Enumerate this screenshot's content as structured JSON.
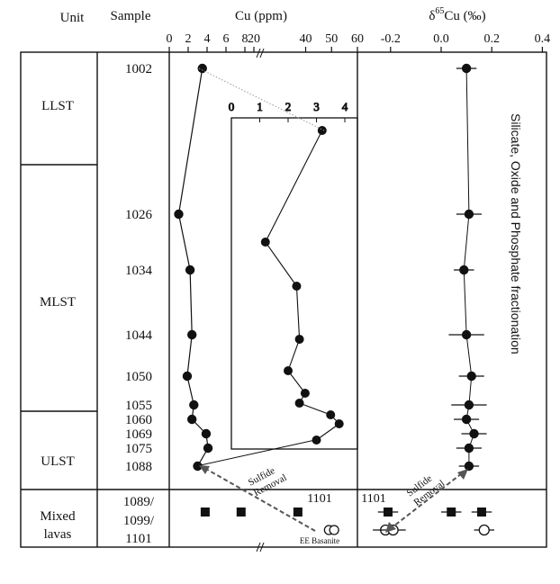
{
  "headers": {
    "unit": "Unit",
    "sample": "Sample",
    "cu": "Cu (ppm)",
    "delta_prefix": "δ",
    "delta_sup": "65",
    "delta_suffix": "Cu (‰)"
  },
  "units": [
    {
      "name": "LLST"
    },
    {
      "name": "MLST"
    },
    {
      "name": "ULST"
    },
    {
      "name": "Mixed\nlavas"
    }
  ],
  "samples": [
    "1002",
    "1026",
    "1034",
    "1044",
    "1050",
    "1055",
    "1060",
    "1069",
    "1075",
    "1088",
    "1089/",
    "1099/",
    "1101"
  ],
  "annotations": {
    "sulfide_removal": "Sulfide\nRemoval",
    "fractionation": "Silicate, Oxide and Phosphate fractionation",
    "ee_basanite": "EE Basanite",
    "label_1101_cu": "1101",
    "label_1101_delta": "1101"
  },
  "colors": {
    "ink": "#111111",
    "arrow": "#555555",
    "guide": "#999999"
  },
  "chart_data": [
    {
      "type": "scatter",
      "title": "Cu (ppm)",
      "xlabel": "Cu (ppm)",
      "x_axis": "broken: linear 0–8 then linear 20–60",
      "xticks": [
        "0",
        "2",
        "4",
        "6",
        "8",
        "20",
        "40",
        "50",
        "60"
      ],
      "series": [
        {
          "values": [
            {
              "sample": "1002",
              "cu": 3.5
            },
            {
              "sample": "1026",
              "cu": 1.0
            },
            {
              "sample": "1034",
              "cu": 2.2
            },
            {
              "sample": "1044",
              "cu": 2.4
            },
            {
              "sample": "1050",
              "cu": 1.9
            },
            {
              "sample": "1055",
              "cu": 2.6
            },
            {
              "sample": "1060",
              "cu": 2.4
            },
            {
              "sample": "1069",
              "cu": 3.9
            },
            {
              "sample": "1075",
              "cu": 4.1
            },
            {
              "sample": "1088",
              "cu": 3.0
            }
          ]
        },
        {
          "marker": "square",
          "values": [
            {
              "sample": "1089/1099",
              "cu": 3.8
            },
            {
              "sample": "1089/1099",
              "cu": 7.6
            },
            {
              "sample": "1101",
              "cu": 37
            }
          ]
        },
        {
          "marker": "open-circle",
          "values": [
            {
              "sample": "EE Basanite",
              "cu": 49
            },
            {
              "sample": "EE Basanite",
              "cu": 51
            }
          ]
        }
      ]
    },
    {
      "type": "scatter",
      "title": "inset",
      "xticks": [
        "0",
        "1",
        "2",
        "3",
        "4"
      ],
      "xlim": [
        0,
        4
      ],
      "values": [
        {
          "sample": "1002",
          "cu": 3.2
        },
        {
          "sample": "1026",
          "cu": 1.2
        },
        {
          "sample": "1034",
          "cu": 2.3
        },
        {
          "sample": "1044",
          "cu": 2.4
        },
        {
          "sample": "1050",
          "cu": 2.0
        },
        {
          "sample": "1055",
          "cu": 2.6
        },
        {
          "sample": "1060",
          "cu": 2.4
        },
        {
          "sample": "1069",
          "cu": 3.5
        },
        {
          "sample": "1075",
          "cu": 3.8
        },
        {
          "sample": "1088",
          "cu": 3.0
        }
      ]
    },
    {
      "type": "scatter",
      "title": "δ65Cu (‰)",
      "xlabel": "δ65Cu (‰)",
      "xlim": [
        -0.4,
        0.4
      ],
      "xticks": [
        "-0.2",
        "0.0",
        "0.2",
        "0.4"
      ],
      "series": [
        {
          "values": [
            {
              "sample": "1002",
              "d65cu": 0.1,
              "err": 0.04
            },
            {
              "sample": "1026",
              "d65cu": 0.11,
              "err": 0.05
            },
            {
              "sample": "1034",
              "d65cu": 0.09,
              "err": 0.04
            },
            {
              "sample": "1044",
              "d65cu": 0.1,
              "err": 0.07
            },
            {
              "sample": "1050",
              "d65cu": 0.12,
              "err": 0.05
            },
            {
              "sample": "1055",
              "d65cu": 0.11,
              "err": 0.07
            },
            {
              "sample": "1060",
              "d65cu": 0.1,
              "err": 0.05
            },
            {
              "sample": "1069",
              "d65cu": 0.13,
              "err": 0.05
            },
            {
              "sample": "1075",
              "d65cu": 0.11,
              "err": 0.05
            },
            {
              "sample": "1088",
              "d65cu": 0.11,
              "err": 0.04
            }
          ]
        },
        {
          "marker": "square",
          "values": [
            {
              "sample": "1101",
              "d65cu": -0.21,
              "err": 0.04
            },
            {
              "sample": "1089/1099",
              "d65cu": 0.04,
              "err": 0.04
            },
            {
              "sample": "1089/1099",
              "d65cu": 0.16,
              "err": 0.04
            }
          ]
        },
        {
          "marker": "open-circle",
          "values": [
            {
              "sample": "EE Basanite",
              "d65cu": -0.22,
              "err": 0.05
            },
            {
              "sample": "EE Basanite",
              "d65cu": -0.19,
              "err": 0.05
            },
            {
              "sample": "EE Basanite",
              "d65cu": 0.17,
              "err": 0.04
            }
          ]
        }
      ]
    }
  ]
}
